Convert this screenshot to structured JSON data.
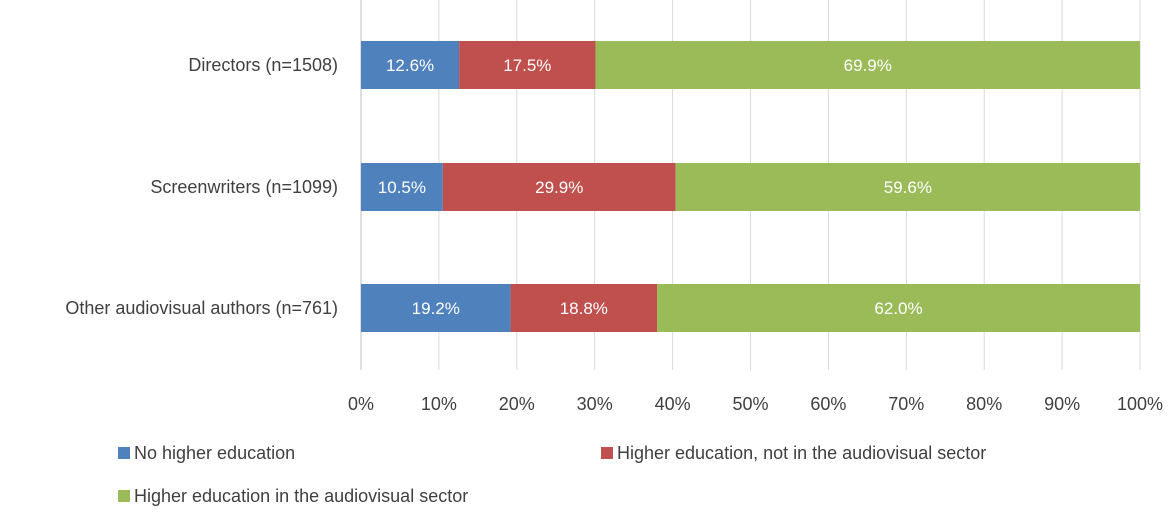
{
  "chart_data": {
    "type": "bar",
    "orientation": "horizontal",
    "stacked": true,
    "percent_stacked": true,
    "categories": [
      "Directors (n=1508)",
      "Screenwriters (n=1099)",
      "Other audiovisual authors (n=761)"
    ],
    "series": [
      {
        "name": "No higher education",
        "color": "#4f81bd",
        "values": [
          12.6,
          10.5,
          19.2
        ],
        "labels": [
          "12.6%",
          "10.5%",
          "19.2%"
        ]
      },
      {
        "name": "Higher education, not in the audiovisual sector",
        "color": "#c0504d",
        "values": [
          17.5,
          29.9,
          18.8
        ],
        "labels": [
          "17.5%",
          "29.9%",
          "18.8%"
        ]
      },
      {
        "name": "Higher education in the audiovisual sector",
        "color": "#9bbb59",
        "values": [
          69.9,
          59.6,
          62.0
        ],
        "labels": [
          "69.9%",
          "59.6%",
          "62.0%"
        ]
      }
    ],
    "xlim": [
      0,
      100
    ],
    "x_ticks": [
      0,
      10,
      20,
      30,
      40,
      50,
      60,
      70,
      80,
      90,
      100
    ],
    "x_tick_labels": [
      "0%",
      "10%",
      "20%",
      "30%",
      "40%",
      "50%",
      "60%",
      "70%",
      "80%",
      "90%",
      "100%"
    ],
    "grid": true,
    "legend_position": "bottom",
    "gridline_color": "#d9d9d9",
    "axis_text_color": "#404040",
    "data_label_color": "#ffffff"
  }
}
